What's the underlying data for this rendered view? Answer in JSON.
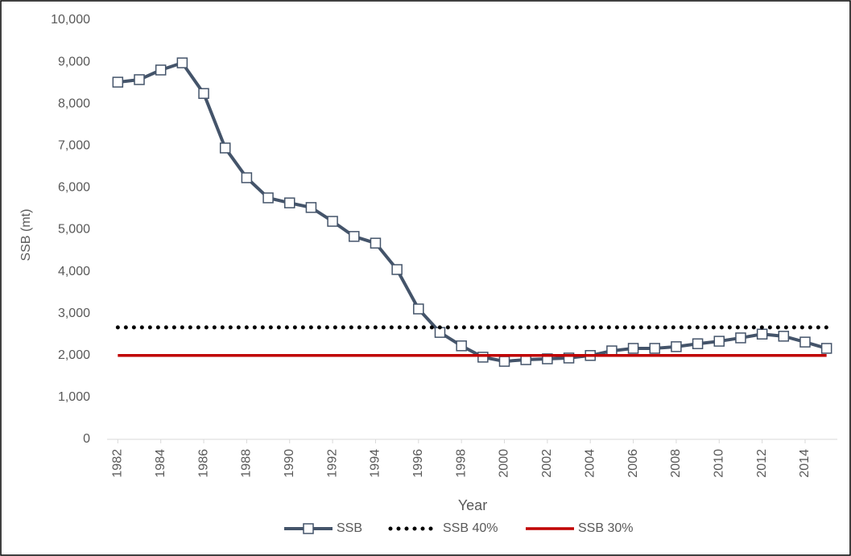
{
  "chart_data": {
    "type": "line",
    "x_label": "Year",
    "y_label": "SSB (mt)",
    "x": [
      1982,
      1983,
      1984,
      1985,
      1986,
      1987,
      1988,
      1989,
      1990,
      1991,
      1992,
      1993,
      1994,
      1995,
      1996,
      1997,
      1998,
      1999,
      2000,
      2001,
      2002,
      2003,
      2004,
      2005,
      2006,
      2007,
      2008,
      2009,
      2010,
      2011,
      2012,
      2013,
      2014,
      2015
    ],
    "series": [
      {
        "name": "SSB",
        "color": "#44546a",
        "marker": "square",
        "values": [
          8520,
          8580,
          8810,
          8980,
          8250,
          6950,
          6240,
          5760,
          5640,
          5530,
          5200,
          4840,
          4680,
          4050,
          3110,
          2550,
          2230,
          1960,
          1860,
          1900,
          1920,
          1940,
          2000,
          2110,
          2170,
          2170,
          2210,
          2280,
          2340,
          2420,
          2510,
          2460,
          2320,
          2170
        ]
      },
      {
        "name": "SSB 40%",
        "color": "#000000",
        "dash": "dotted",
        "values": [
          2670,
          2670,
          2670,
          2670,
          2670,
          2670,
          2670,
          2670,
          2670,
          2670,
          2670,
          2670,
          2670,
          2670,
          2670,
          2670,
          2670,
          2670,
          2670,
          2670,
          2670,
          2670,
          2670,
          2670,
          2670,
          2670,
          2670,
          2670,
          2670,
          2670,
          2670,
          2670,
          2670,
          2670
        ]
      },
      {
        "name": "SSB 30%",
        "color": "#c00000",
        "values": [
          2000,
          2000,
          2000,
          2000,
          2000,
          2000,
          2000,
          2000,
          2000,
          2000,
          2000,
          2000,
          2000,
          2000,
          2000,
          2000,
          2000,
          2000,
          2000,
          2000,
          2000,
          2000,
          2000,
          2000,
          2000,
          2000,
          2000,
          2000,
          2000,
          2000,
          2000,
          2000,
          2000,
          2000
        ]
      }
    ],
    "xlim": [
      1981.5,
      2015.5
    ],
    "xticks": [
      1982,
      1984,
      1986,
      1988,
      1990,
      1992,
      1994,
      1996,
      1998,
      2000,
      2002,
      2004,
      2006,
      2008,
      2010,
      2012,
      2014
    ],
    "ylim": [
      0,
      10000
    ],
    "yticks": [
      0,
      {
        "value": 1000,
        "label": "1,000"
      },
      {
        "value": 2000,
        "label": "2,000"
      },
      {
        "value": 3000,
        "label": "3,000"
      },
      {
        "value": 4000,
        "label": "4,000"
      },
      {
        "value": 5000,
        "label": "5,000"
      },
      {
        "value": 6000,
        "label": "6,000"
      },
      {
        "value": 7000,
        "label": "7,000"
      },
      {
        "value": 8000,
        "label": "8,000"
      },
      {
        "value": 9000,
        "label": "9,000"
      },
      {
        "value": 10000,
        "label": "10,000"
      }
    ],
    "legend": "bottom"
  }
}
